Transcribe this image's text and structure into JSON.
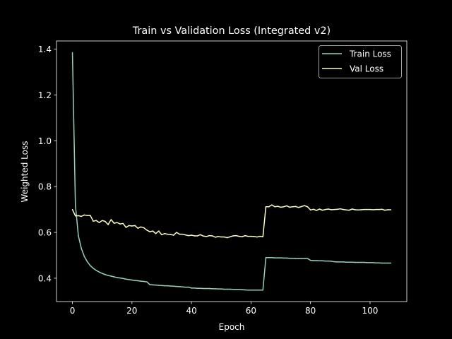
{
  "chart_data": {
    "type": "line",
    "title": "Train vs Validation Loss (Integrated v2)",
    "xlabel": "Epoch",
    "ylabel": "Weighted Loss",
    "xlim": [
      -5.35,
      112.35
    ],
    "ylim": [
      0.298,
      1.436
    ],
    "xticks": [
      0,
      20,
      40,
      60,
      80,
      100
    ],
    "yticks": [
      0.4,
      0.6,
      0.8,
      1.0,
      1.2,
      1.4
    ],
    "xtick_labels": [
      "0",
      "20",
      "40",
      "60",
      "80",
      "100"
    ],
    "ytick_labels": [
      "0.4",
      "0.6",
      "0.8",
      "1.0",
      "1.2",
      "1.4"
    ],
    "grid": false,
    "legend_position": "upper right",
    "background": "#000000",
    "colors": {
      "train": "#8dd3c7",
      "val": "#ffffb3",
      "text": "#ffffff",
      "axes": "#ffffff"
    },
    "series": [
      {
        "name": "Train Loss",
        "color": "#8dd3c7",
        "x": [
          0,
          1,
          2,
          3,
          4,
          5,
          6,
          7,
          8,
          9,
          10,
          11,
          12,
          13,
          14,
          15,
          16,
          17,
          18,
          19,
          20,
          21,
          22,
          23,
          24,
          25,
          26,
          27,
          28,
          29,
          30,
          31,
          32,
          33,
          34,
          35,
          36,
          37,
          38,
          39,
          40,
          41,
          42,
          43,
          44,
          45,
          46,
          47,
          48,
          49,
          50,
          51,
          52,
          53,
          54,
          55,
          56,
          57,
          58,
          59,
          60,
          61,
          62,
          63,
          64,
          65,
          66,
          67,
          68,
          69,
          70,
          71,
          72,
          73,
          74,
          75,
          76,
          77,
          78,
          79,
          80,
          81,
          82,
          83,
          84,
          85,
          86,
          87,
          88,
          89,
          90,
          91,
          92,
          93,
          94,
          95,
          96,
          97,
          98,
          99,
          100,
          101,
          102,
          103,
          104,
          105,
          106,
          107
        ],
        "values": [
          1.385,
          0.72,
          0.585,
          0.53,
          0.495,
          0.472,
          0.455,
          0.443,
          0.434,
          0.427,
          0.421,
          0.416,
          0.412,
          0.409,
          0.406,
          0.403,
          0.401,
          0.399,
          0.396,
          0.394,
          0.392,
          0.39,
          0.389,
          0.387,
          0.386,
          0.384,
          0.372,
          0.371,
          0.37,
          0.369,
          0.368,
          0.367,
          0.367,
          0.366,
          0.365,
          0.364,
          0.363,
          0.362,
          0.361,
          0.361,
          0.357,
          0.357,
          0.356,
          0.356,
          0.355,
          0.355,
          0.355,
          0.354,
          0.354,
          0.353,
          0.353,
          0.352,
          0.352,
          0.352,
          0.351,
          0.351,
          0.351,
          0.35,
          0.349,
          0.348,
          0.348,
          0.348,
          0.348,
          0.348,
          0.348,
          0.49,
          0.49,
          0.49,
          0.489,
          0.489,
          0.489,
          0.488,
          0.488,
          0.487,
          0.487,
          0.486,
          0.486,
          0.486,
          0.486,
          0.486,
          0.478,
          0.477,
          0.477,
          0.476,
          0.476,
          0.475,
          0.475,
          0.474,
          0.472,
          0.471,
          0.471,
          0.471,
          0.47,
          0.47,
          0.47,
          0.469,
          0.469,
          0.469,
          0.469,
          0.468,
          0.468,
          0.468,
          0.467,
          0.467,
          0.466,
          0.466,
          0.466,
          0.466
        ]
      },
      {
        "name": "Val Loss",
        "color": "#ffffb3",
        "x": [
          0,
          1,
          2,
          3,
          4,
          5,
          6,
          7,
          8,
          9,
          10,
          11,
          12,
          13,
          14,
          15,
          16,
          17,
          18,
          19,
          20,
          21,
          22,
          23,
          24,
          25,
          26,
          27,
          28,
          29,
          30,
          31,
          32,
          33,
          34,
          35,
          36,
          37,
          38,
          39,
          40,
          41,
          42,
          43,
          44,
          45,
          46,
          47,
          48,
          49,
          50,
          51,
          52,
          53,
          54,
          55,
          56,
          57,
          58,
          59,
          60,
          61,
          62,
          63,
          64,
          65,
          66,
          67,
          68,
          69,
          70,
          71,
          72,
          73,
          74,
          75,
          76,
          77,
          78,
          79,
          80,
          81,
          82,
          83,
          84,
          85,
          86,
          87,
          88,
          89,
          90,
          91,
          92,
          93,
          94,
          95,
          96,
          97,
          98,
          99,
          100,
          101,
          102,
          103,
          104,
          105,
          106,
          107
        ],
        "values": [
          0.7,
          0.672,
          0.673,
          0.67,
          0.676,
          0.674,
          0.674,
          0.649,
          0.652,
          0.643,
          0.652,
          0.648,
          0.634,
          0.656,
          0.64,
          0.643,
          0.637,
          0.639,
          0.622,
          0.63,
          0.628,
          0.63,
          0.618,
          0.624,
          0.62,
          0.61,
          0.603,
          0.606,
          0.595,
          0.606,
          0.59,
          0.595,
          0.592,
          0.591,
          0.588,
          0.6,
          0.592,
          0.592,
          0.589,
          0.586,
          0.588,
          0.585,
          0.585,
          0.59,
          0.584,
          0.582,
          0.586,
          0.585,
          0.579,
          0.582,
          0.58,
          0.58,
          0.577,
          0.581,
          0.585,
          0.586,
          0.583,
          0.581,
          0.586,
          0.583,
          0.583,
          0.582,
          0.58,
          0.583,
          0.581,
          0.712,
          0.712,
          0.72,
          0.712,
          0.714,
          0.71,
          0.712,
          0.716,
          0.71,
          0.712,
          0.713,
          0.709,
          0.713,
          0.717,
          0.712,
          0.698,
          0.701,
          0.696,
          0.702,
          0.697,
          0.7,
          0.702,
          0.699,
          0.7,
          0.701,
          0.703,
          0.7,
          0.698,
          0.697,
          0.702,
          0.699,
          0.698,
          0.699,
          0.7,
          0.7,
          0.7,
          0.699,
          0.7,
          0.7,
          0.701,
          0.697,
          0.699,
          0.699
        ]
      }
    ]
  }
}
